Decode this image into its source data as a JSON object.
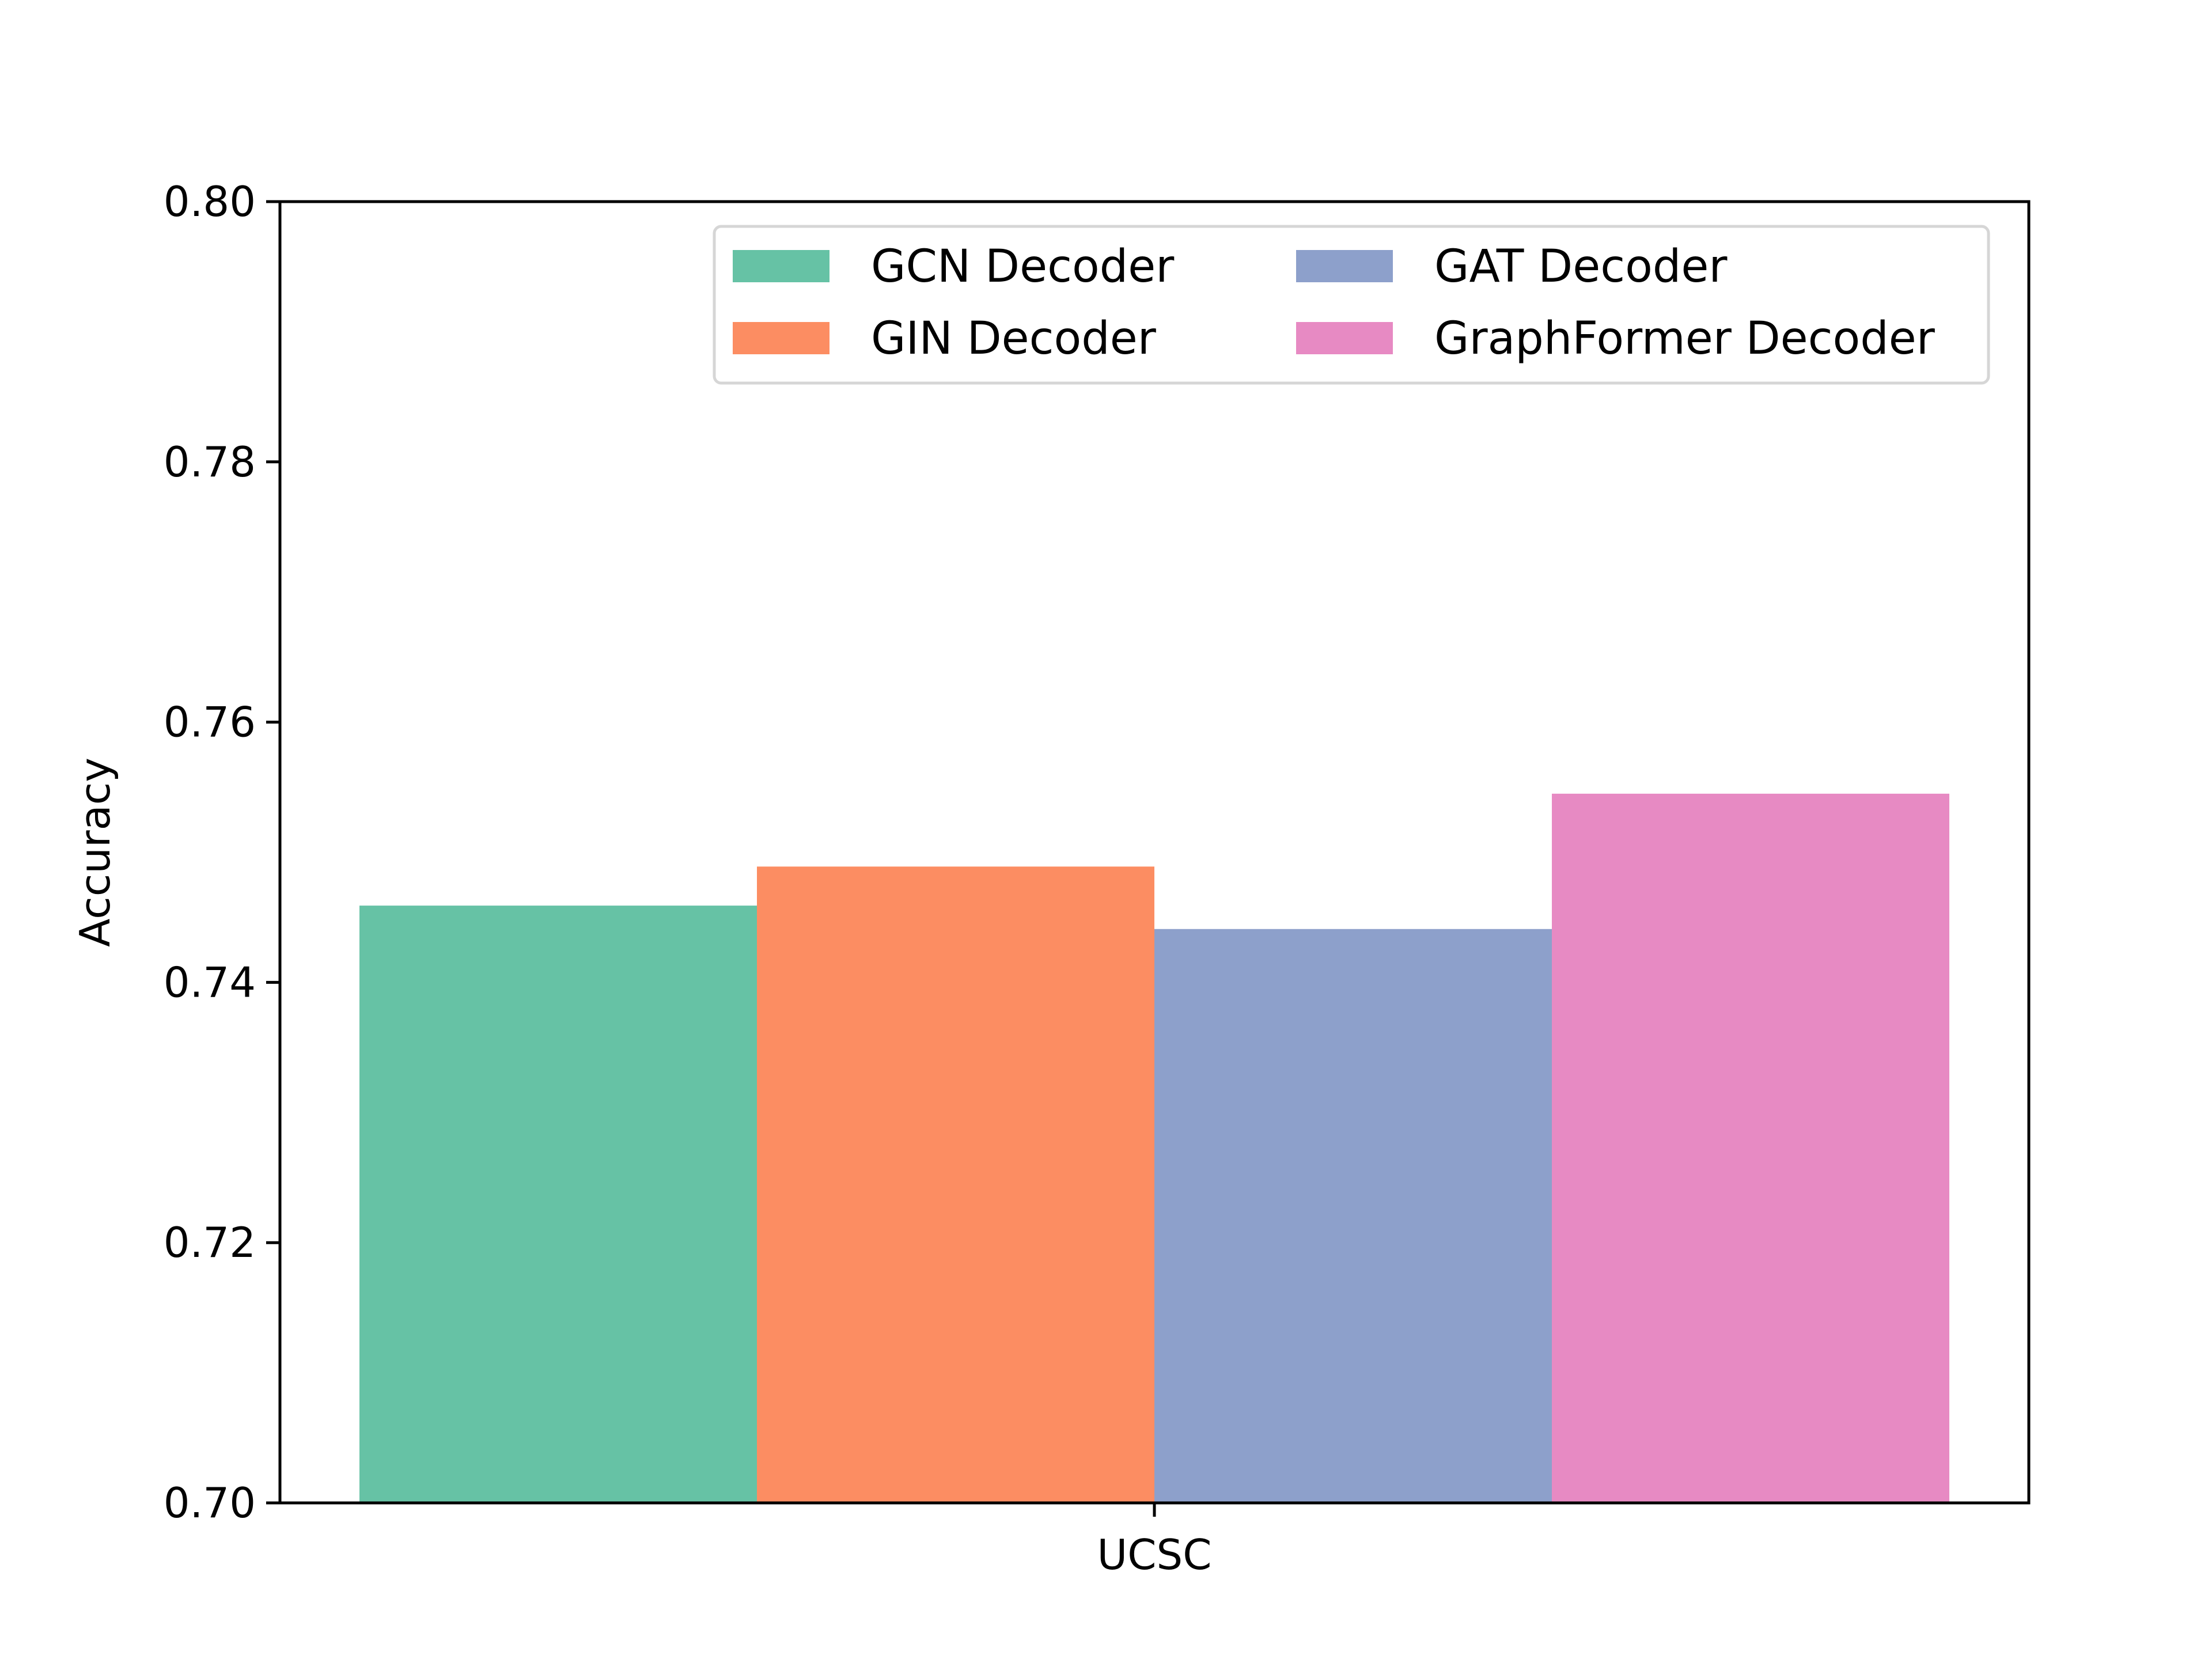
{
  "chart_data": {
    "type": "bar",
    "categories": [
      "UCSC"
    ],
    "series": [
      {
        "name": "GCN Decoder",
        "values": [
          0.7459
        ],
        "color": "#66c2a5"
      },
      {
        "name": "GIN Decoder",
        "values": [
          0.7489
        ],
        "color": "#fc8d62"
      },
      {
        "name": "GAT Decoder",
        "values": [
          0.7441
        ],
        "color": "#8da0cb"
      },
      {
        "name": "GraphFormer Decoder",
        "values": [
          0.7545
        ],
        "color": "#e78ac3"
      }
    ],
    "ylabel": "Accuracy",
    "xlabel": "",
    "ylim": [
      0.7,
      0.8
    ],
    "yticks": [
      "0.70",
      "0.72",
      "0.74",
      "0.76",
      "0.78",
      "0.80"
    ],
    "grid": false,
    "legend": {
      "placement": "top-right",
      "columns": 2
    }
  }
}
